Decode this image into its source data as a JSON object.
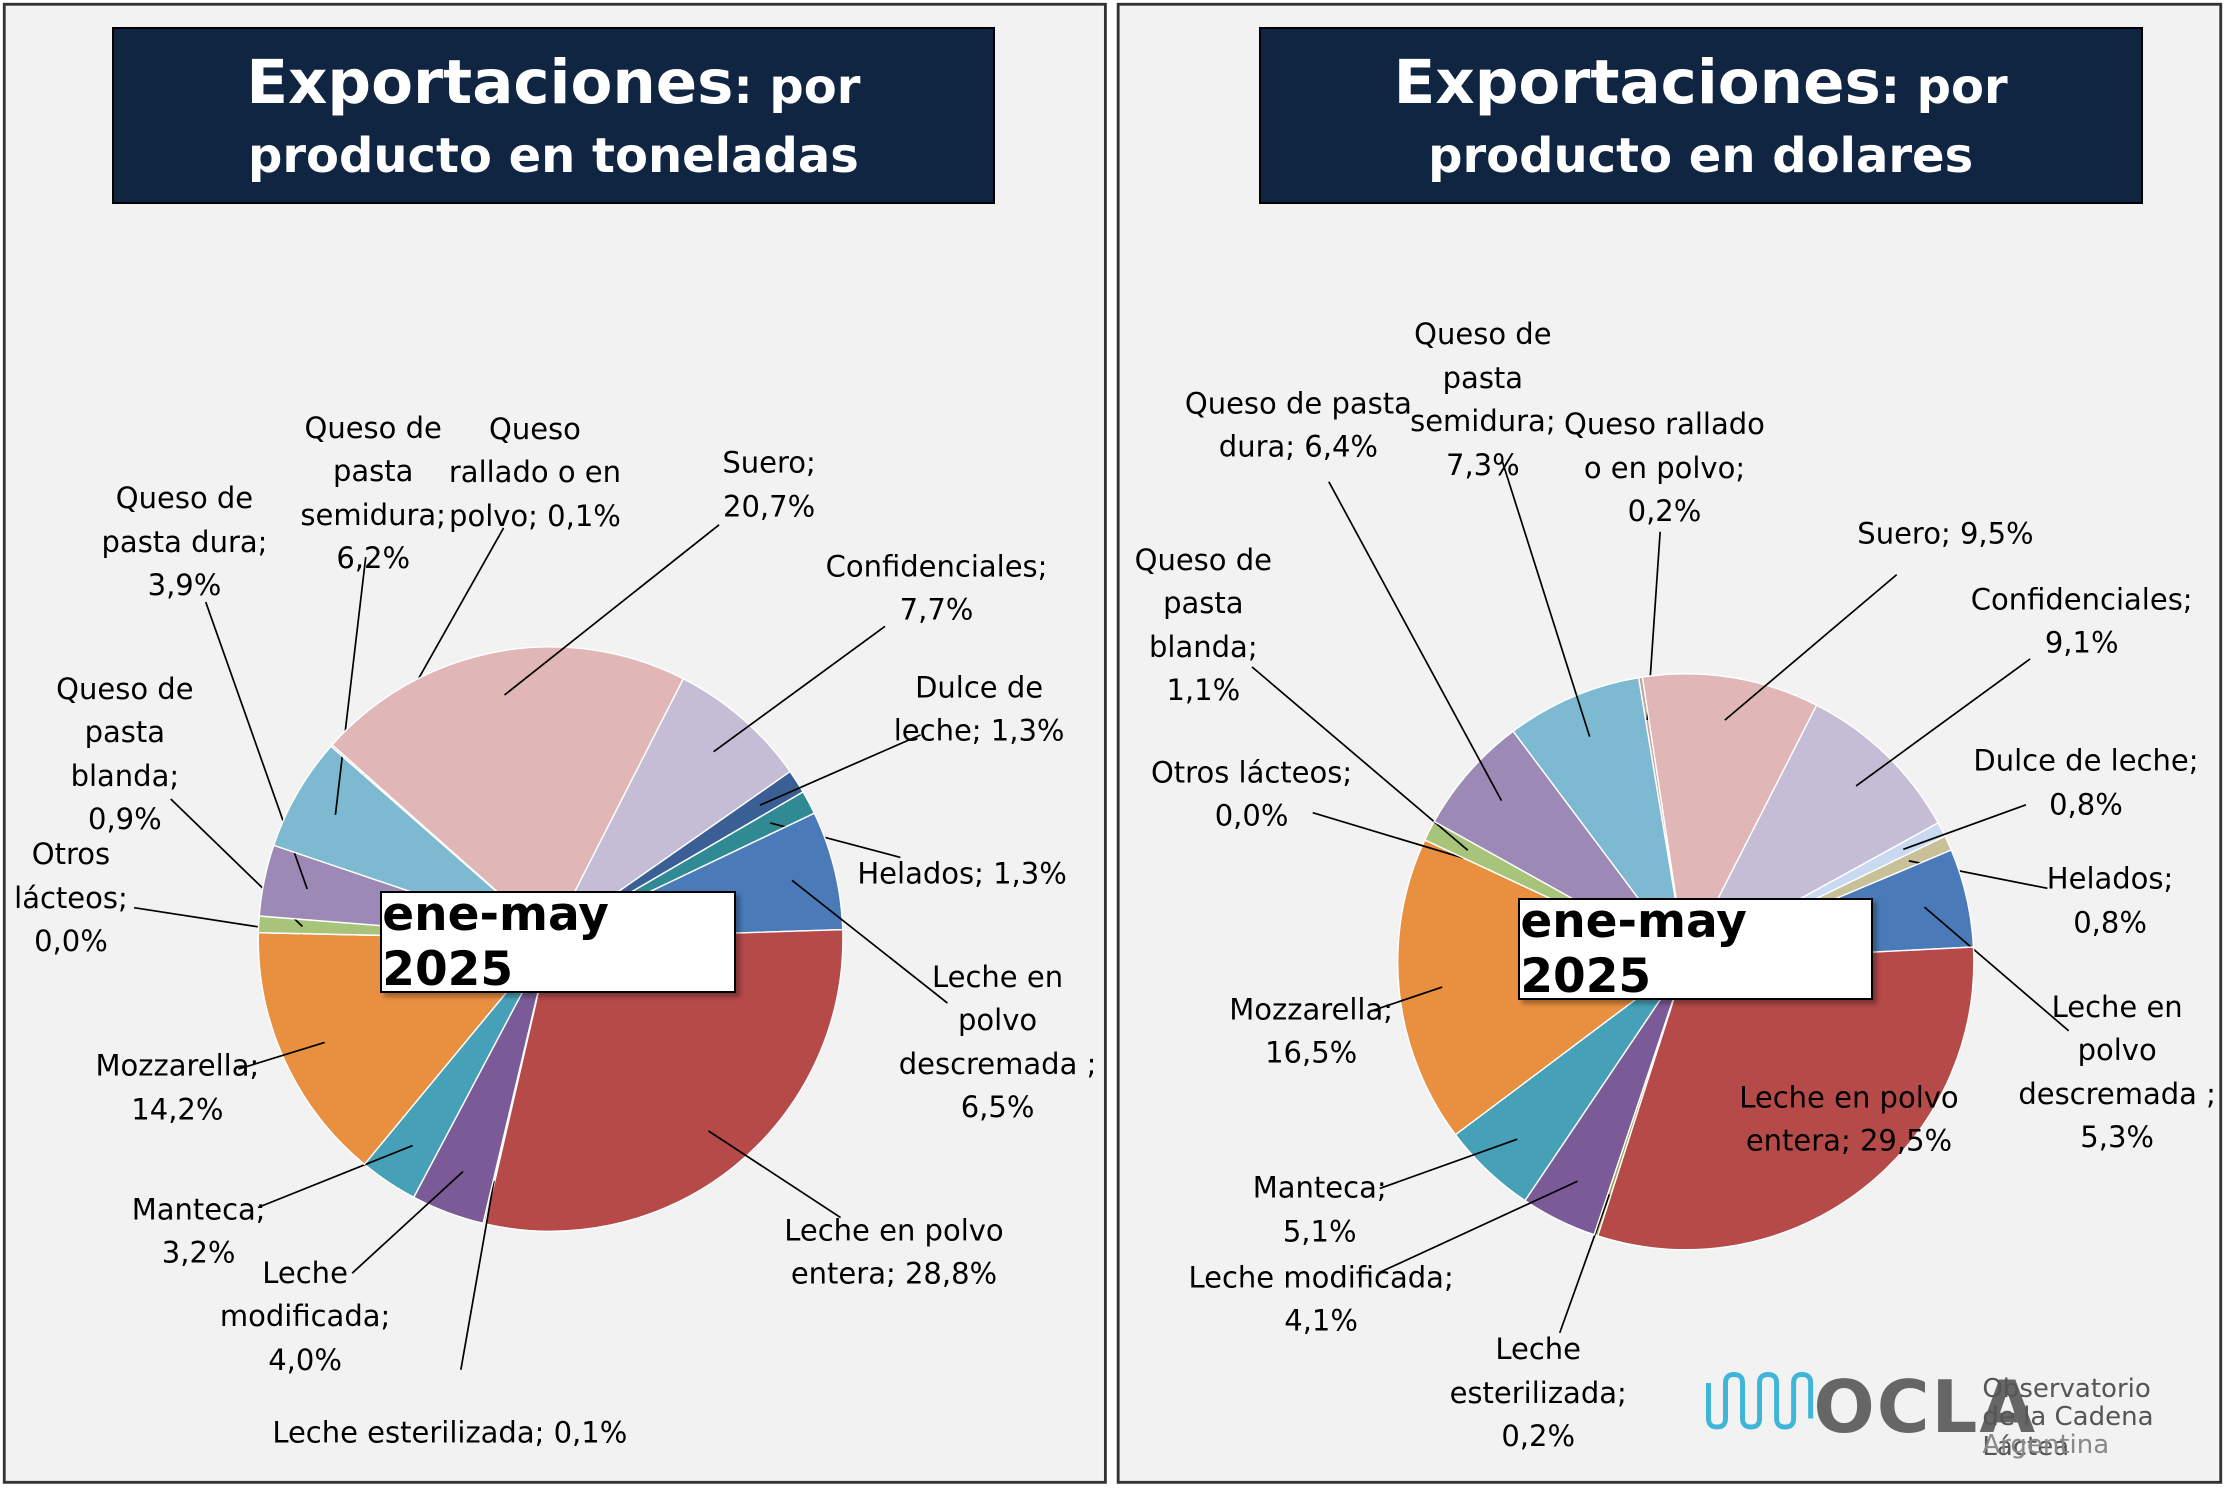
{
  "chart_data": [
    {
      "type": "pie",
      "title": "Exportaciones",
      "subtitle": ": por producto en toneladas",
      "annotation": "ene-may 2025",
      "categories": [
        "Confidenciales;",
        "Dulce de leche;",
        "Helados;",
        "Leche en polvo descremada",
        "Leche en polvo entera;",
        "Leche esterilizada;",
        "Leche modificada;",
        "Manteca;",
        "Mozzarella;",
        "Otros lácteos;",
        "Queso de pasta blanda;",
        "Queso de pasta dura;",
        "Queso de pasta semidura;",
        "Queso rallado o en polvo;",
        "Suero;"
      ],
      "values": [
        7.7,
        1.3,
        1.3,
        6.5,
        28.8,
        0.1,
        4.0,
        3.2,
        14.2,
        0.0,
        0.9,
        3.9,
        6.2,
        0.1,
        20.7
      ],
      "value_labels": [
        "7,7%",
        "1,3%",
        "1,3%",
        "; 6,5%",
        "28,8%",
        "0,1%",
        "4,0%",
        "3,2%",
        "14,2%",
        "0,0%",
        "0,9%",
        "3,9%",
        "6,2%",
        "0,1%",
        "20,7%"
      ],
      "colors": [
        "#c5bdd6",
        "#3a5f94",
        "#2f8a94",
        "#4a7ab8",
        "#b54a48",
        "#9aa050",
        "#7b5a98",
        "#46a0b8",
        "#e88f40",
        "#8aaedc",
        "#a8c47a",
        "#9d89b5",
        "#7dbad2",
        "#c8a0a0",
        "#e0b7b6"
      ]
    },
    {
      "type": "pie",
      "title": "Exportaciones",
      "subtitle": ": por producto en dolares",
      "annotation": "ene-may 2025",
      "categories": [
        "Confidenciales;",
        "Dulce de leche;",
        "Helados;",
        "Leche en polvo descremada",
        "Leche en polvo entera;",
        "Leche esterilizada;",
        "Leche modificada;",
        "Manteca;",
        "Mozzarella;",
        "Otros lácteos;",
        "Queso de pasta blanda;",
        "Queso de pasta dura;",
        "Queso de pasta semidura;",
        "Queso rallado o en polvo;",
        "Suero;"
      ],
      "values": [
        9.1,
        0.8,
        0.8,
        5.3,
        29.5,
        0.2,
        4.1,
        5.1,
        16.5,
        0.0,
        1.1,
        6.4,
        7.3,
        0.2,
        9.5
      ],
      "value_labels": [
        "9,1%",
        "0,8%",
        "0,8%",
        "; 5,3%",
        "29,5%",
        "0,2%",
        "4,1%",
        "5,1%",
        "16,5%",
        "0,0%",
        "1,1%",
        "6,4%",
        "7,3%",
        "0,2%",
        "9,5%"
      ],
      "colors": [
        "#c5bdd6",
        "#c9daf0",
        "#c8c098",
        "#4a7ab8",
        "#b54a48",
        "#9aa050",
        "#7b5a98",
        "#46a0b8",
        "#e88f40",
        "#8aaedc",
        "#a8c47a",
        "#9d89b5",
        "#7dbad2",
        "#c8a0a0",
        "#e0b7b6"
      ]
    }
  ],
  "logo": {
    "name": "OCLA",
    "line1": "Observatorio",
    "line2": "de la Cadena Láctea",
    "line3": "Argentina"
  }
}
